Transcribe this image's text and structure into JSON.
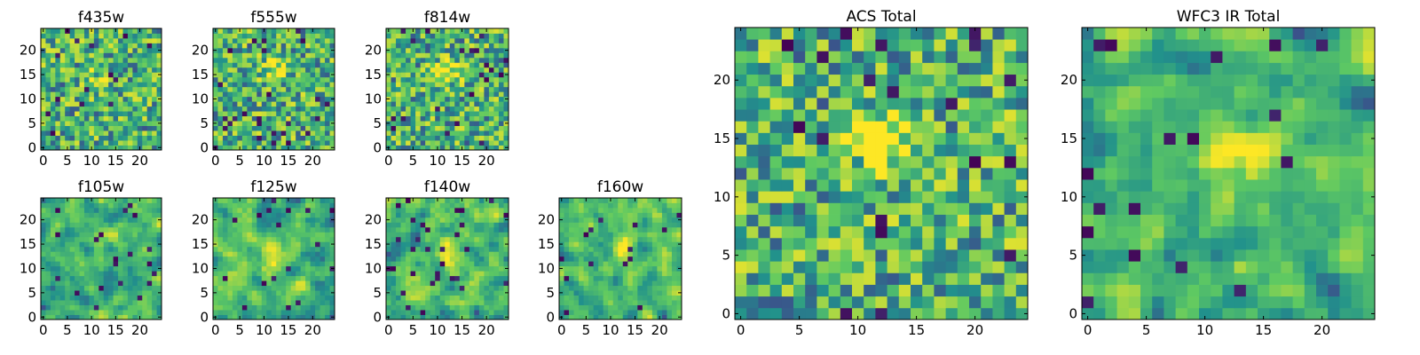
{
  "chart_data": [
    {
      "type": "heatmap",
      "title": "f435w",
      "xlim": [
        0,
        24
      ],
      "ylim": [
        0,
        24
      ],
      "xticks": [
        0,
        5,
        10,
        15,
        20
      ],
      "yticks": [
        0,
        5,
        10,
        15,
        20
      ],
      "grid_size": 25,
      "seed": 11,
      "blur": 0,
      "hotspot": [
        12,
        15,
        0.35
      ]
    },
    {
      "type": "heatmap",
      "title": "f555w",
      "xlim": [
        0,
        24
      ],
      "ylim": [
        0,
        24
      ],
      "xticks": [
        0,
        5,
        10,
        15,
        20
      ],
      "yticks": [
        0,
        5,
        10,
        15,
        20
      ],
      "grid_size": 25,
      "seed": 23,
      "blur": 0,
      "hotspot": [
        12,
        16,
        0.6
      ]
    },
    {
      "type": "heatmap",
      "title": "f814w",
      "xlim": [
        0,
        24
      ],
      "ylim": [
        0,
        24
      ],
      "xticks": [
        0,
        5,
        10,
        15,
        20
      ],
      "yticks": [
        0,
        5,
        10,
        15,
        20
      ],
      "grid_size": 25,
      "seed": 37,
      "blur": 0,
      "hotspot": [
        12,
        16,
        0.7
      ]
    },
    {
      "type": "heatmap",
      "title": "f105w",
      "xlim": [
        0,
        24
      ],
      "ylim": [
        0,
        24
      ],
      "xticks": [
        0,
        5,
        10,
        15,
        20
      ],
      "yticks": [
        0,
        5,
        10,
        15,
        20
      ],
      "grid_size": 25,
      "seed": 41,
      "blur": 1,
      "hotspot": [
        12,
        16,
        0.5
      ]
    },
    {
      "type": "heatmap",
      "title": "f125w",
      "xlim": [
        0,
        24
      ],
      "ylim": [
        0,
        24
      ],
      "xticks": [
        0,
        5,
        10,
        15,
        20
      ],
      "yticks": [
        0,
        5,
        10,
        15,
        20
      ],
      "grid_size": 25,
      "seed": 53,
      "blur": 1,
      "hotspot": [
        12,
        12,
        0.5
      ]
    },
    {
      "type": "heatmap",
      "title": "f140w",
      "xlim": [
        0,
        24
      ],
      "ylim": [
        0,
        24
      ],
      "xticks": [
        0,
        5,
        10,
        15,
        20
      ],
      "yticks": [
        0,
        5,
        10,
        15,
        20
      ],
      "grid_size": 25,
      "seed": 67,
      "blur": 1,
      "hotspot": [
        12,
        14,
        0.5
      ]
    },
    {
      "type": "heatmap",
      "title": "f160w",
      "xlim": [
        0,
        24
      ],
      "ylim": [
        0,
        24
      ],
      "xticks": [
        0,
        5,
        10,
        15,
        20
      ],
      "yticks": [
        0,
        5,
        10,
        15,
        20
      ],
      "grid_size": 25,
      "seed": 79,
      "blur": 1,
      "hotspot": [
        13,
        14,
        0.5
      ]
    },
    {
      "type": "heatmap",
      "title": "ACS Total",
      "xlim": [
        0,
        24
      ],
      "ylim": [
        0,
        24
      ],
      "xticks": [
        0,
        5,
        10,
        15,
        20
      ],
      "yticks": [
        0,
        5,
        10,
        15,
        20
      ],
      "grid_size": 25,
      "seed": 97,
      "blur": 0,
      "hotspot": [
        12,
        15,
        0.85
      ]
    },
    {
      "type": "heatmap",
      "title": "WFC3 IR Total",
      "xlim": [
        0,
        24
      ],
      "ylim": [
        0,
        24
      ],
      "xticks": [
        0,
        5,
        10,
        15,
        20
      ],
      "yticks": [
        0,
        5,
        10,
        15,
        20
      ],
      "grid_size": 25,
      "seed": 113,
      "blur": 1,
      "hotspot": [
        13,
        14,
        0.6
      ]
    }
  ],
  "colors": {
    "colormap": [
      "#440154",
      "#3b528b",
      "#21918c",
      "#5ec962",
      "#fde725"
    ],
    "axis": "#000000"
  }
}
